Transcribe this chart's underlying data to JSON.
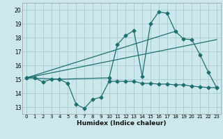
{
  "title": "",
  "xlabel": "Humidex (Indice chaleur)",
  "background_color": "#cce8ec",
  "grid_color": "#aacdd4",
  "line_color": "#1e7070",
  "xlim": [
    -0.5,
    23.5
  ],
  "ylim": [
    12.5,
    20.5
  ],
  "xticks": [
    0,
    1,
    2,
    3,
    4,
    5,
    6,
    7,
    8,
    9,
    10,
    11,
    12,
    13,
    14,
    15,
    16,
    17,
    18,
    19,
    20,
    21,
    22,
    23
  ],
  "yticks": [
    13,
    14,
    15,
    16,
    17,
    18,
    19,
    20
  ],
  "line1_x": [
    0,
    1,
    2,
    3,
    4,
    5,
    6,
    7,
    8,
    9,
    10,
    11,
    12,
    13,
    14,
    15,
    16,
    17,
    18,
    19,
    20,
    21,
    22,
    23
  ],
  "line1_y": [
    15.1,
    15.1,
    14.8,
    15.0,
    15.0,
    14.7,
    13.2,
    12.9,
    13.55,
    13.7,
    14.85,
    14.85,
    14.85,
    14.85,
    14.7,
    14.7,
    14.65,
    14.65,
    14.6,
    14.6,
    14.5,
    14.45,
    14.4,
    14.4
  ],
  "line2_x": [
    0,
    4,
    10,
    11,
    12,
    13,
    14,
    15,
    16,
    17,
    18,
    19,
    20,
    21,
    22,
    23
  ],
  "line2_y": [
    15.1,
    15.0,
    15.1,
    17.5,
    18.15,
    18.5,
    15.2,
    19.0,
    19.85,
    19.75,
    18.45,
    17.9,
    17.85,
    16.75,
    15.5,
    14.4
  ],
  "line3_x": [
    0,
    18
  ],
  "line3_y": [
    15.1,
    18.45
  ],
  "line4_x": [
    0,
    23
  ],
  "line4_y": [
    15.1,
    17.85
  ]
}
